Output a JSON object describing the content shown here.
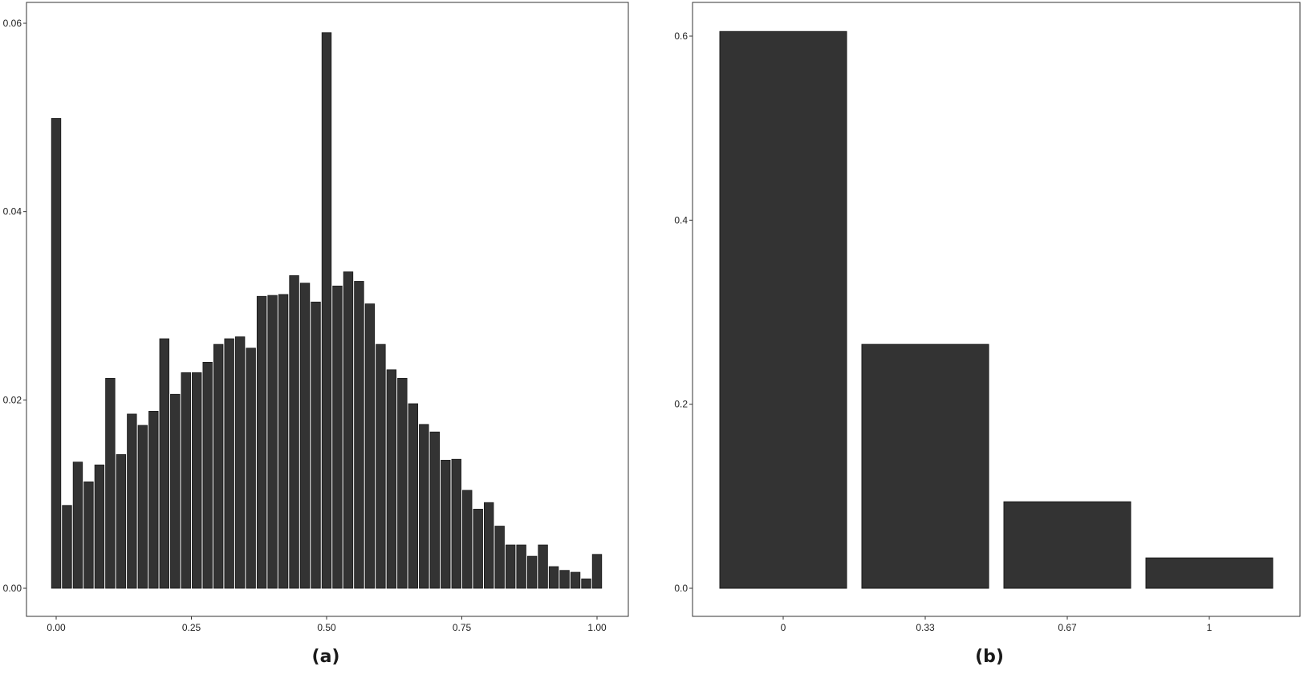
{
  "colors": {
    "bar_fill": "#333333",
    "bar_stroke": "#1a1a1a",
    "panel_border": "#333333",
    "background": "#ffffff"
  },
  "captions": {
    "a": "(a)",
    "b": "(b)"
  },
  "chart_data": [
    {
      "id": "a",
      "type": "bar",
      "title": "",
      "xlabel": "",
      "ylabel": "",
      "grid": false,
      "xlim": [
        -0.03,
        1.03
      ],
      "ylim": [
        0,
        0.0625
      ],
      "bin_width": 0.02,
      "xticks": [
        0.0,
        0.25,
        0.5,
        0.75,
        1.0
      ],
      "xtick_labels": [
        "0.00",
        "0.25",
        "0.50",
        "0.75",
        "1.00"
      ],
      "yticks": [
        0.0,
        0.02,
        0.04,
        0.06
      ],
      "ytick_labels": [
        "0.00",
        "0.02",
        "0.04",
        "0.06"
      ],
      "x": [
        0.0,
        0.02,
        0.04,
        0.06,
        0.08,
        0.1,
        0.12,
        0.14,
        0.16,
        0.18,
        0.2,
        0.22,
        0.24,
        0.26,
        0.28,
        0.3,
        0.32,
        0.34,
        0.36,
        0.38,
        0.4,
        0.42,
        0.44,
        0.46,
        0.48,
        0.5,
        0.52,
        0.54,
        0.56,
        0.58,
        0.6,
        0.62,
        0.64,
        0.66,
        0.68,
        0.7,
        0.72,
        0.74,
        0.76,
        0.78,
        0.8,
        0.82,
        0.84,
        0.86,
        0.88,
        0.9,
        0.92,
        0.94,
        0.96,
        0.98,
        1.0
      ],
      "values": [
        0.0499,
        0.0088,
        0.0134,
        0.0113,
        0.0131,
        0.0223,
        0.0142,
        0.0185,
        0.0173,
        0.0188,
        0.0265,
        0.0206,
        0.0229,
        0.0229,
        0.024,
        0.0259,
        0.0265,
        0.0267,
        0.0255,
        0.031,
        0.0311,
        0.0312,
        0.0332,
        0.0324,
        0.0304,
        0.059,
        0.0321,
        0.0336,
        0.0326,
        0.0302,
        0.0259,
        0.0232,
        0.0223,
        0.0196,
        0.0174,
        0.0166,
        0.0136,
        0.0137,
        0.0104,
        0.0084,
        0.0091,
        0.0066,
        0.0046,
        0.0046,
        0.0034,
        0.0046,
        0.0023,
        0.0019,
        0.0017,
        0.001,
        0.0036
      ]
    },
    {
      "id": "b",
      "type": "bar",
      "title": "",
      "xlabel": "",
      "ylabel": "",
      "grid": false,
      "ylim": [
        0,
        0.63
      ],
      "categories": [
        "0",
        "0.33",
        "0.67",
        "1"
      ],
      "values": [
        0.605,
        0.265,
        0.094,
        0.033
      ],
      "yticks": [
        0.0,
        0.2,
        0.4,
        0.6
      ],
      "ytick_labels": [
        "0.0",
        "0.2",
        "0.4",
        "0.6"
      ]
    }
  ]
}
